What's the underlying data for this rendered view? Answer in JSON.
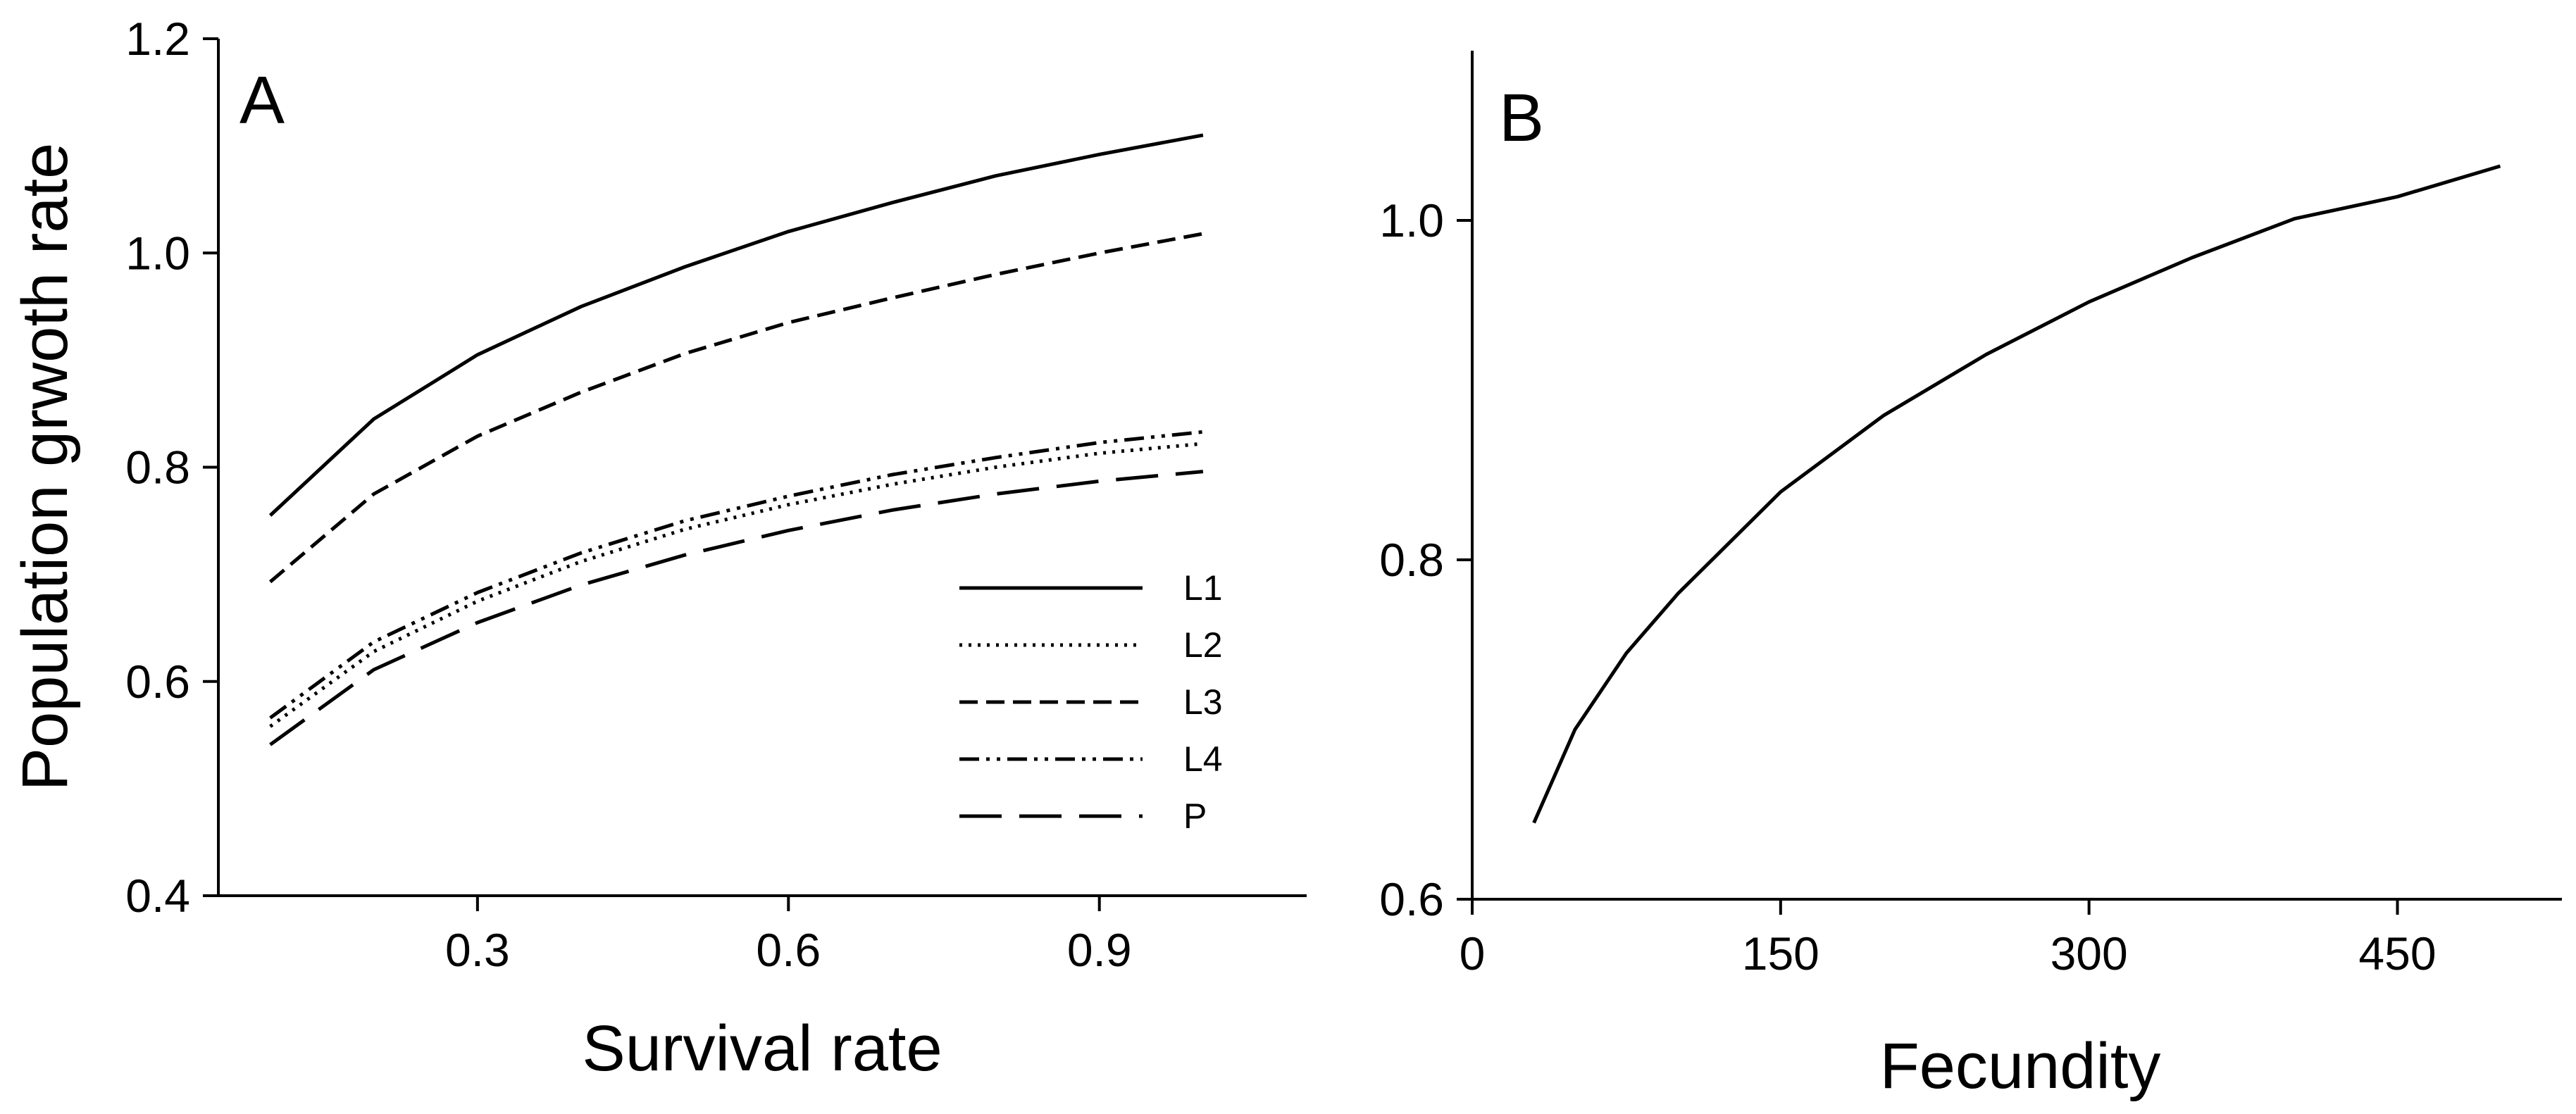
{
  "chart_data": [
    {
      "panel": "A",
      "type": "line",
      "title": "",
      "xlabel": "Survival rate",
      "ylabel": "Population grwoth rate",
      "xlim": [
        0.05,
        1.1
      ],
      "ylim": [
        0.4,
        1.2
      ],
      "xticks": [
        0.3,
        0.6,
        0.9
      ],
      "xtick_labels": [
        "0.3",
        "0.6",
        "0.9"
      ],
      "yticks": [
        0.4,
        0.6,
        0.8,
        1.0,
        1.2
      ],
      "ytick_labels": [
        "0.4",
        "0.6",
        "0.8",
        "1.0",
        "1.2"
      ],
      "grid": false,
      "legend": "bottom-right",
      "x": [
        0.1,
        0.2,
        0.3,
        0.4,
        0.5,
        0.6,
        0.7,
        0.8,
        0.9,
        1.0
      ],
      "series": [
        {
          "name": "L1",
          "dash": "solid",
          "values": [
            0.755,
            0.845,
            0.905,
            0.95,
            0.987,
            1.02,
            1.047,
            1.072,
            1.092,
            1.11
          ]
        },
        {
          "name": "L2",
          "dash": "dotted",
          "values": [
            0.558,
            0.628,
            0.675,
            0.712,
            0.742,
            0.765,
            0.784,
            0.8,
            0.813,
            0.822
          ]
        },
        {
          "name": "L3",
          "dash": "dashed",
          "values": [
            0.693,
            0.775,
            0.829,
            0.87,
            0.906,
            0.935,
            0.958,
            0.98,
            1.0,
            1.018
          ]
        },
        {
          "name": "L4",
          "dash": "dash-dot-dot",
          "values": [
            0.566,
            0.637,
            0.683,
            0.72,
            0.75,
            0.773,
            0.793,
            0.809,
            0.823,
            0.833
          ]
        },
        {
          "name": "P",
          "dash": "long-dash",
          "values": [
            0.541,
            0.611,
            0.655,
            0.69,
            0.718,
            0.741,
            0.76,
            0.775,
            0.787,
            0.796
          ]
        }
      ]
    },
    {
      "panel": "B",
      "type": "line",
      "title": "",
      "xlabel": "Fecundity",
      "ylabel": "",
      "xlim": [
        0,
        530
      ],
      "ylim": [
        0.6,
        1.1
      ],
      "xticks": [
        0,
        150,
        300,
        450
      ],
      "xtick_labels": [
        "0",
        "150",
        "300",
        "450"
      ],
      "yticks": [
        0.6,
        0.8,
        1.0
      ],
      "ytick_labels": [
        "0.6",
        "0.8",
        "1.0"
      ],
      "grid": false,
      "x": [
        30,
        50,
        75,
        100,
        150,
        200,
        250,
        300,
        350,
        400,
        450,
        500
      ],
      "series": [
        {
          "name": "",
          "dash": "solid",
          "values": [
            0.645,
            0.7,
            0.745,
            0.78,
            0.84,
            0.885,
            0.921,
            0.952,
            0.978,
            1.001,
            1.014,
            1.032
          ]
        }
      ]
    }
  ]
}
